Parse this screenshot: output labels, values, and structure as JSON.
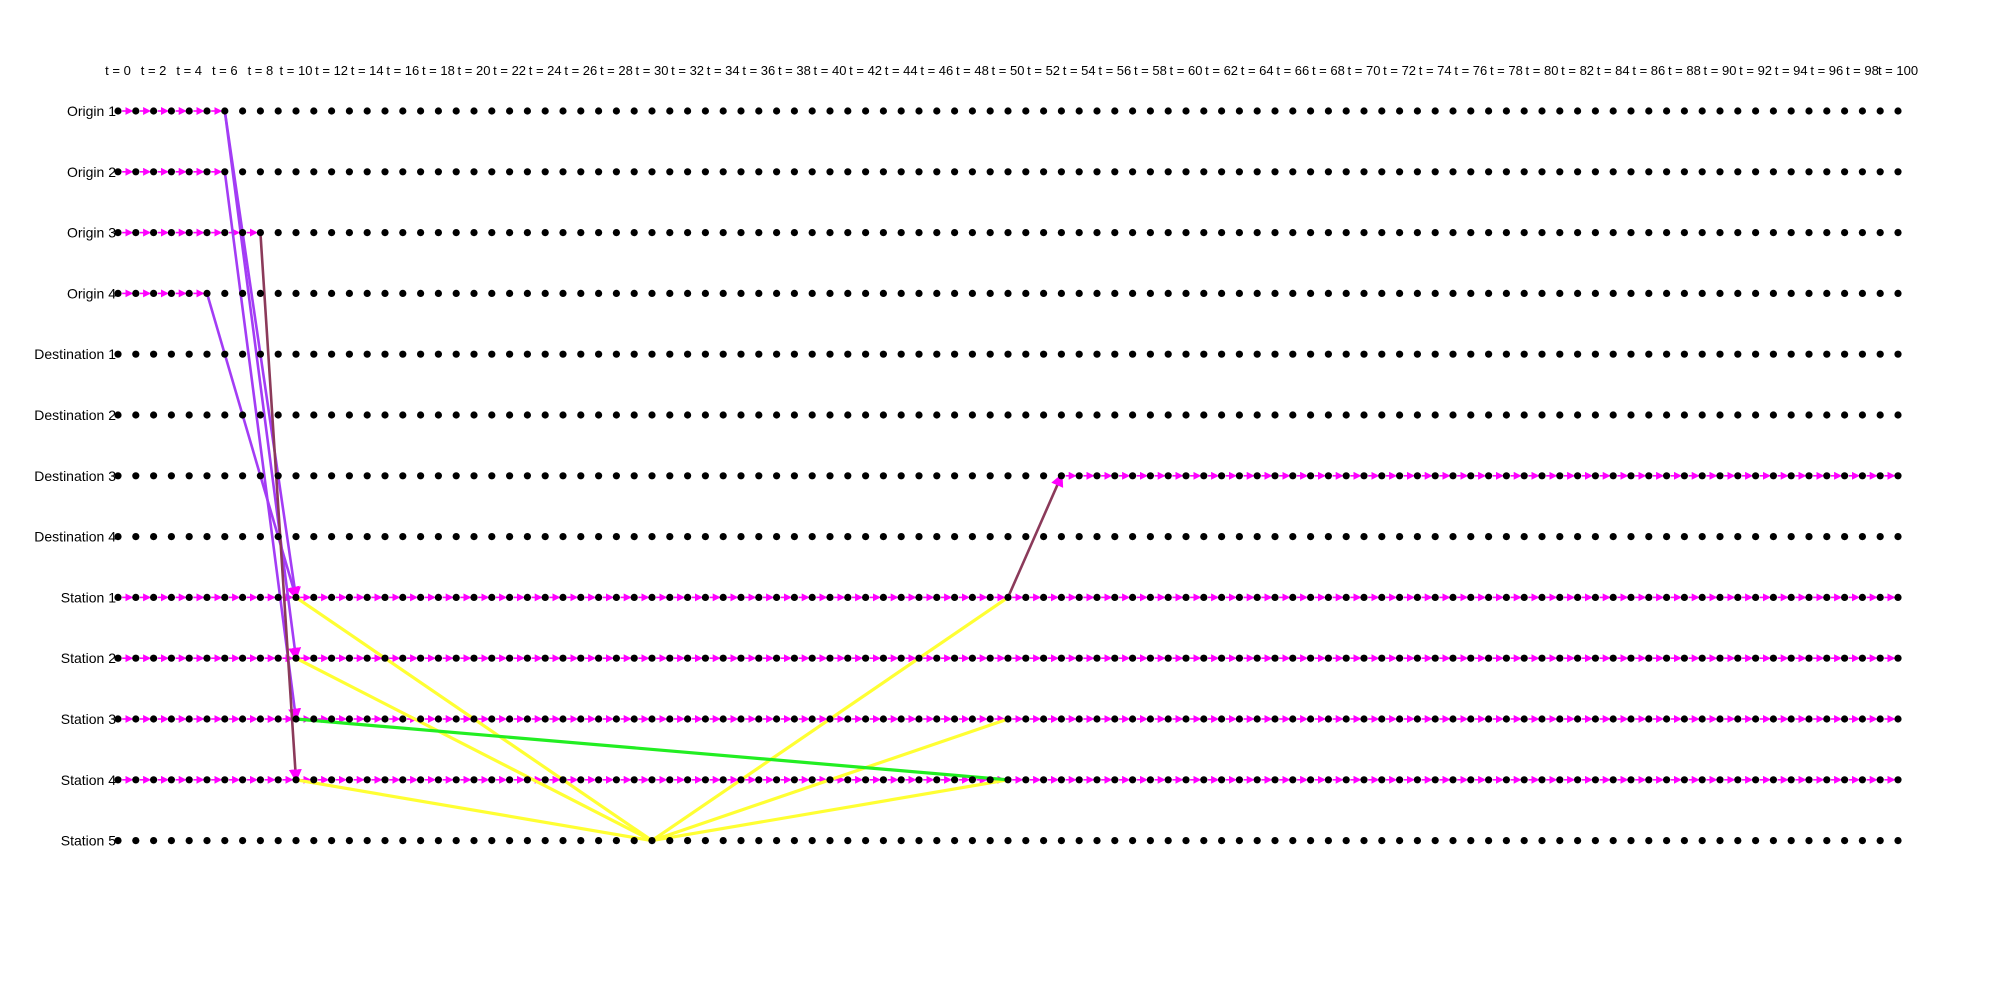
{
  "time_axis": {
    "start": 0,
    "end": 100,
    "step": 1,
    "label_step": 2,
    "label_prefix": "t = "
  },
  "nodes": [
    "Origin 1",
    "Origin 2",
    "Origin 3",
    "Origin 4",
    "Destination 1",
    "Destination 2",
    "Destination 3",
    "Destination 4",
    "Station 1",
    "Station 2",
    "Station 3",
    "Station 4",
    "Station 5"
  ],
  "colors": {
    "node_dot": "#000000",
    "wait_arrow": "#ff00ff",
    "purple_flow": "#a33cf5",
    "dark_flow": "#8b3a5a",
    "yellow_flow": "#ffff33",
    "green_flow": "#22ee22"
  },
  "wait_segments": [
    {
      "node": "Origin 1",
      "from": 0,
      "to": 6,
      "color": "wait_arrow"
    },
    {
      "node": "Origin 2",
      "from": 0,
      "to": 6,
      "color": "wait_arrow"
    },
    {
      "node": "Origin 3",
      "from": 0,
      "to": 8,
      "color": "wait_arrow"
    },
    {
      "node": "Origin 4",
      "from": 0,
      "to": 5,
      "color": "wait_arrow"
    },
    {
      "node": "Station 1",
      "from": 0,
      "to": 100,
      "color": "wait_arrow"
    },
    {
      "node": "Station 2",
      "from": 0,
      "to": 100,
      "color": "wait_arrow"
    },
    {
      "node": "Station 3",
      "from": 0,
      "to": 100,
      "color": "wait_arrow"
    },
    {
      "node": "Station 4",
      "from": 0,
      "to": 100,
      "color": "wait_arrow"
    },
    {
      "node": "Destination 3",
      "from": 53,
      "to": 100,
      "color": "wait_arrow"
    }
  ],
  "flows": [
    {
      "from_node": "Origin 1",
      "t0": 6,
      "to_node": "Station 1",
      "t1": 10,
      "color": "purple_flow",
      "arrow": true
    },
    {
      "from_node": "Origin 1",
      "t0": 6,
      "to_node": "Station 2",
      "t1": 10,
      "color": "purple_flow",
      "arrow": true
    },
    {
      "from_node": "Origin 2",
      "t0": 6,
      "to_node": "Station 3",
      "t1": 10,
      "color": "purple_flow",
      "arrow": true
    },
    {
      "from_node": "Origin 4",
      "t0": 5,
      "to_node": "Station 1",
      "t1": 10,
      "color": "purple_flow",
      "arrow": true
    },
    {
      "from_node": "Origin 3",
      "t0": 8,
      "to_node": "Station 4",
      "t1": 10,
      "color": "dark_flow",
      "arrow": true
    },
    {
      "from_node": "Station 1",
      "t0": 50,
      "to_node": "Destination 3",
      "t1": 53,
      "color": "dark_flow",
      "arrow": true
    },
    {
      "from_node": "Station 1",
      "t0": 10,
      "to_node": "Station 5",
      "t1": 30,
      "color": "yellow_flow",
      "arrow": false
    },
    {
      "from_node": "Station 2",
      "t0": 10,
      "to_node": "Station 5",
      "t1": 30,
      "color": "yellow_flow",
      "arrow": false
    },
    {
      "from_node": "Station 4",
      "t0": 10,
      "to_node": "Station 5",
      "t1": 30,
      "color": "yellow_flow",
      "arrow": false
    },
    {
      "from_node": "Station 5",
      "t0": 30,
      "to_node": "Station 1",
      "t1": 50,
      "color": "yellow_flow",
      "arrow": false
    },
    {
      "from_node": "Station 5",
      "t0": 30,
      "to_node": "Station 3",
      "t1": 50,
      "color": "yellow_flow",
      "arrow": false
    },
    {
      "from_node": "Station 5",
      "t0": 30,
      "to_node": "Station 4",
      "t1": 50,
      "color": "yellow_flow",
      "arrow": false
    },
    {
      "from_node": "Station 3",
      "t0": 10,
      "to_node": "Station 4",
      "t1": 50,
      "color": "green_flow",
      "arrow": false
    }
  ]
}
